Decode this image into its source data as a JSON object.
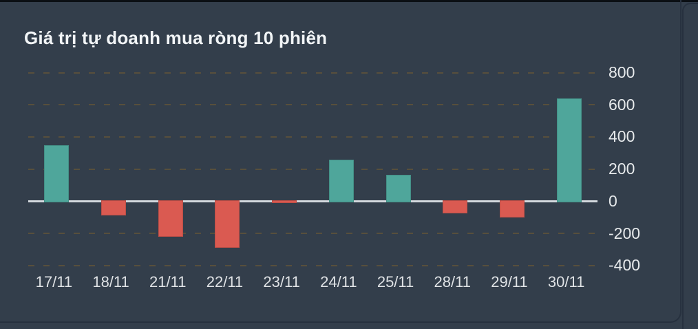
{
  "panel": {
    "title": "Giá trị tự doanh mua ròng 10 phiên"
  },
  "chart_data": {
    "type": "bar",
    "title": "Giá trị tự doanh mua ròng 10 phiên",
    "categories": [
      "17/11",
      "18/11",
      "21/11",
      "22/11",
      "23/11",
      "24/11",
      "25/11",
      "28/11",
      "29/11",
      "30/11"
    ],
    "values": [
      350,
      -90,
      -220,
      -290,
      -10,
      260,
      165,
      -75,
      -100,
      640
    ],
    "xlabel": "",
    "ylabel": "",
    "ylim": [
      -400,
      800
    ],
    "yticks": [
      800,
      600,
      400,
      200,
      0,
      -200,
      -400
    ],
    "grid": "horizontal-dashed",
    "legend_position": "none",
    "y_axis_side": "right",
    "colors": {
      "positive_bar": "#4fa69b",
      "negative_bar": "#da5a51",
      "zero_line": "#d4d9de",
      "gridline": "#584f3c",
      "background": "#333e4b"
    }
  }
}
